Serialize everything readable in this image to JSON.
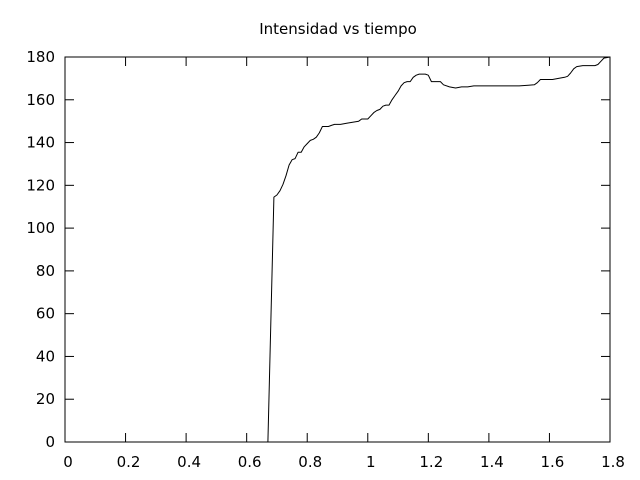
{
  "chart_data": {
    "type": "line",
    "title": "Intensidad vs tiempo",
    "xlabel": "",
    "ylabel": "",
    "xlim": [
      0,
      1.8
    ],
    "ylim": [
      0,
      180
    ],
    "grid": false,
    "x_ticks": [
      "0",
      "0.2",
      "0.4",
      "0.6",
      "0.8",
      "1",
      "1.2",
      "1.4",
      "1.6",
      "1.8"
    ],
    "y_ticks": [
      "0",
      "20",
      "40",
      "60",
      "80",
      "100",
      "120",
      "140",
      "160",
      "180"
    ],
    "series": [
      {
        "color": "#000000",
        "points": [
          [
            0.67,
            0
          ],
          [
            0.69,
            114.5
          ],
          [
            0.7,
            115.5
          ],
          [
            0.71,
            117.5
          ],
          [
            0.72,
            120.5
          ],
          [
            0.73,
            124.5
          ],
          [
            0.74,
            129.5
          ],
          [
            0.75,
            132.0
          ],
          [
            0.76,
            132.5
          ],
          [
            0.77,
            135.5
          ],
          [
            0.78,
            135.5
          ],
          [
            0.79,
            138.0
          ],
          [
            0.8,
            139.5
          ],
          [
            0.81,
            141.0
          ],
          [
            0.82,
            141.5
          ],
          [
            0.83,
            142.5
          ],
          [
            0.84,
            144.5
          ],
          [
            0.85,
            147.5
          ],
          [
            0.86,
            147.5
          ],
          [
            0.87,
            147.5
          ],
          [
            0.88,
            148.0
          ],
          [
            0.89,
            148.5
          ],
          [
            0.91,
            148.5
          ],
          [
            0.93,
            149.0
          ],
          [
            0.95,
            149.5
          ],
          [
            0.97,
            150.0
          ],
          [
            0.98,
            151.0
          ],
          [
            1.0,
            151.0
          ],
          [
            1.01,
            152.5
          ],
          [
            1.02,
            154.0
          ],
          [
            1.03,
            155.0
          ],
          [
            1.04,
            155.5
          ],
          [
            1.05,
            157.0
          ],
          [
            1.06,
            157.5
          ],
          [
            1.07,
            157.5
          ],
          [
            1.08,
            160.0
          ],
          [
            1.09,
            162.0
          ],
          [
            1.1,
            164.0
          ],
          [
            1.11,
            166.5
          ],
          [
            1.12,
            168.0
          ],
          [
            1.13,
            168.5
          ],
          [
            1.14,
            168.5
          ],
          [
            1.15,
            170.5
          ],
          [
            1.16,
            171.5
          ],
          [
            1.17,
            172.0
          ],
          [
            1.19,
            172.0
          ],
          [
            1.2,
            171.5
          ],
          [
            1.21,
            168.5
          ],
          [
            1.22,
            168.5
          ],
          [
            1.24,
            168.5
          ],
          [
            1.25,
            167.0
          ],
          [
            1.27,
            166.0
          ],
          [
            1.29,
            165.5
          ],
          [
            1.31,
            166.0
          ],
          [
            1.33,
            166.0
          ],
          [
            1.35,
            166.5
          ],
          [
            1.38,
            166.5
          ],
          [
            1.42,
            166.5
          ],
          [
            1.46,
            166.5
          ],
          [
            1.5,
            166.5
          ],
          [
            1.53,
            166.8
          ],
          [
            1.55,
            167.0
          ],
          [
            1.56,
            168.0
          ],
          [
            1.57,
            169.5
          ],
          [
            1.59,
            169.5
          ],
          [
            1.61,
            169.5
          ],
          [
            1.63,
            170.0
          ],
          [
            1.65,
            170.5
          ],
          [
            1.66,
            171.0
          ],
          [
            1.67,
            172.5
          ],
          [
            1.68,
            174.5
          ],
          [
            1.69,
            175.5
          ],
          [
            1.71,
            176.0
          ],
          [
            1.73,
            176.0
          ],
          [
            1.75,
            176.0
          ],
          [
            1.76,
            176.5
          ],
          [
            1.77,
            178.0
          ],
          [
            1.78,
            179.5
          ],
          [
            1.8,
            180.0
          ]
        ]
      }
    ]
  }
}
